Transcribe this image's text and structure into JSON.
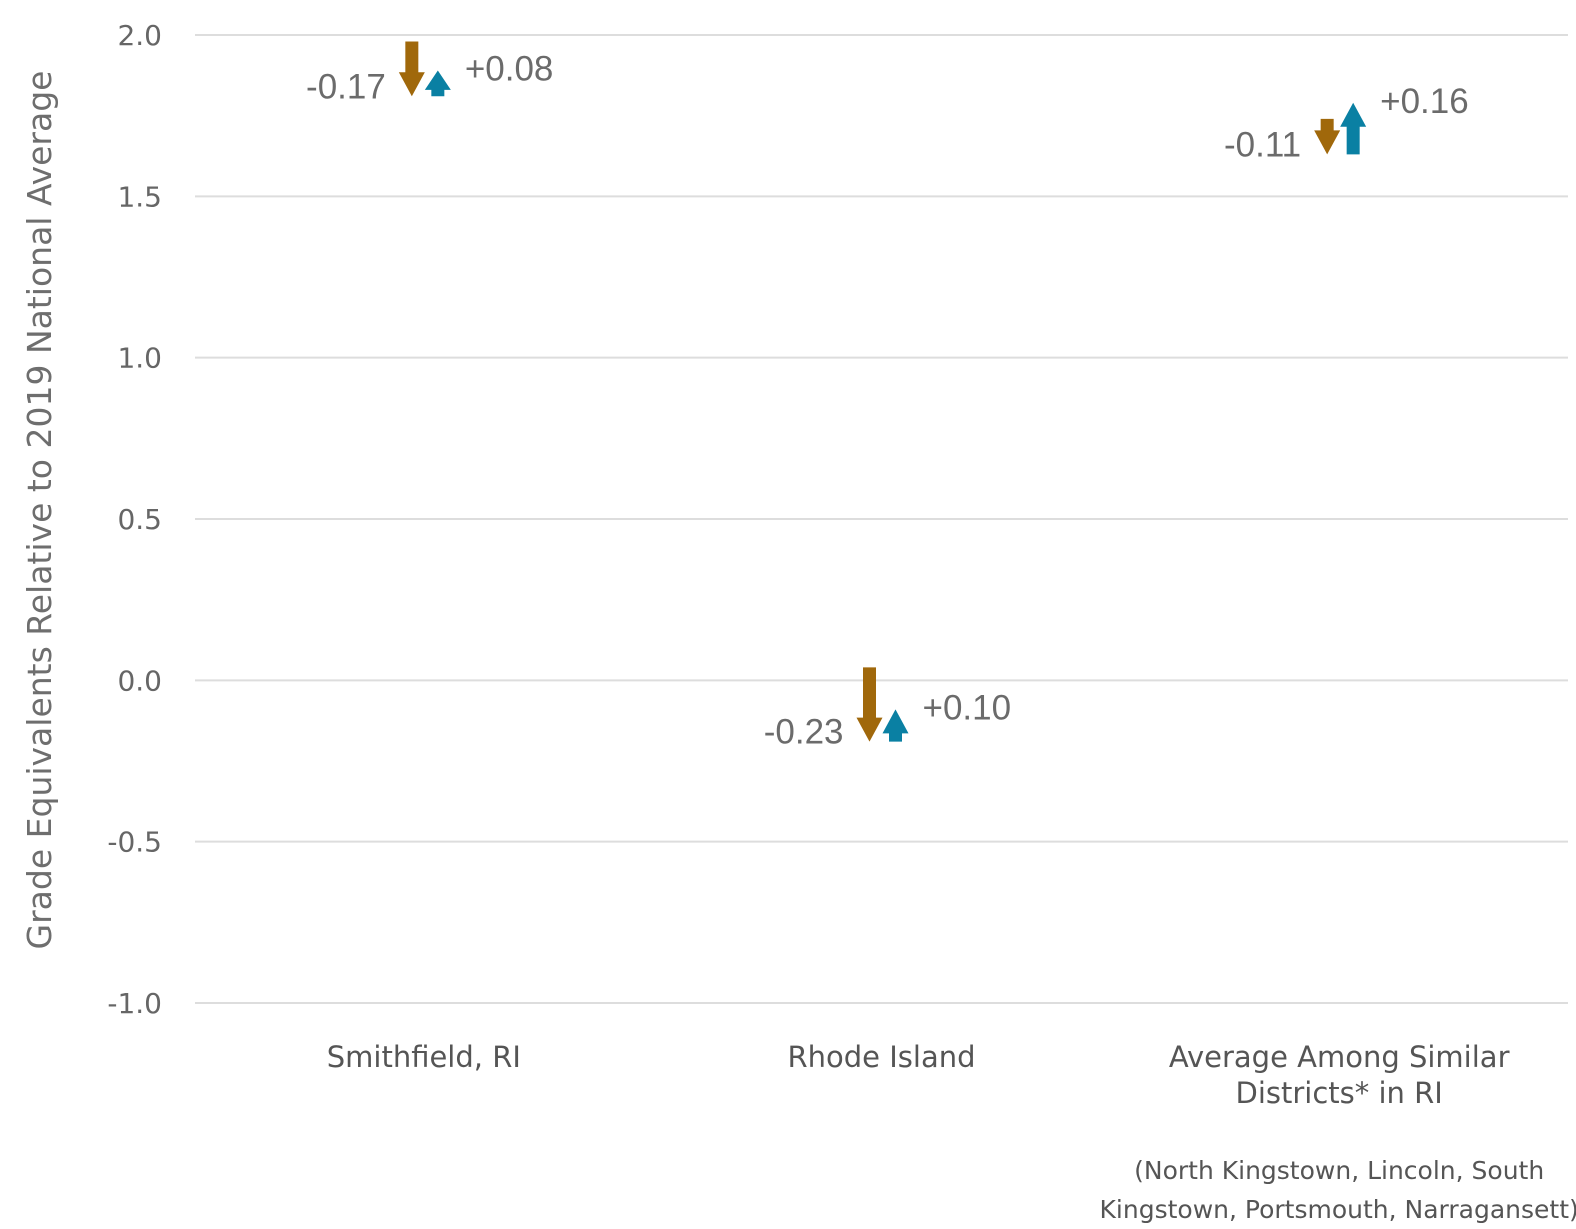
{
  "chart_data": {
    "type": "arrow",
    "ylabel": "Grade Equivalents Relative to 2019 National Average",
    "ylim": [
      -1.0,
      2.0
    ],
    "yticks": [
      2.0,
      1.5,
      1.0,
      0.5,
      0.0,
      -0.5,
      -1.0
    ],
    "ytick_labels": [
      "2.0",
      "1.5",
      "1.0",
      "0.5",
      "0.0",
      "-0.5",
      "-1.0"
    ],
    "grid": true,
    "colors": {
      "decline": "#a0680b",
      "recovery": "#0a80a3",
      "grid": "#dddddd"
    },
    "categories": [
      {
        "label_lines": [
          "Smithfield, RI"
        ],
        "start": 1.98,
        "decline": -0.17,
        "recovery": 0.08,
        "decline_label": "-0.17",
        "recovery_label": "+0.08"
      },
      {
        "label_lines": [
          "Rhode Island"
        ],
        "start": 0.04,
        "decline": -0.23,
        "recovery": 0.1,
        "decline_label": "-0.23",
        "recovery_label": "+0.10"
      },
      {
        "label_lines": [
          "Average Among Similar",
          "Districts* in RI"
        ],
        "start": 1.74,
        "decline": -0.11,
        "recovery": 0.16,
        "decline_label": "-0.11",
        "recovery_label": "+0.16"
      }
    ],
    "footnote_lines": [
      "(North Kingstown, Lincoln, South",
      "Kingstown, Portsmouth, Narragansett)"
    ]
  }
}
